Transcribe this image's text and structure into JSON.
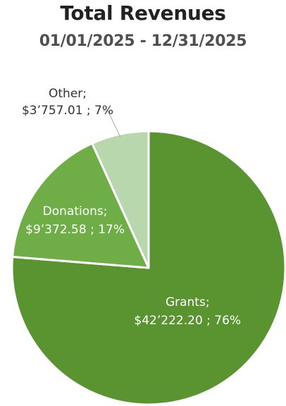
{
  "chart_data": {
    "type": "pie",
    "title": "Total Revenues",
    "subtitle": "01/01/2025 - 12/31/2025",
    "slices": [
      {
        "label": "Grants",
        "amount": "$42’222.20",
        "value": 42222.2,
        "percent": "76%",
        "color": "#5a9431"
      },
      {
        "label": "Donations",
        "amount": "$9’372.58",
        "value": 9372.58,
        "percent": "17%",
        "color": "#6fae46"
      },
      {
        "label": "Other",
        "amount": "$3’757.01",
        "value": 3757.01,
        "percent": "7%",
        "color": "#b8d7ac"
      }
    ]
  }
}
